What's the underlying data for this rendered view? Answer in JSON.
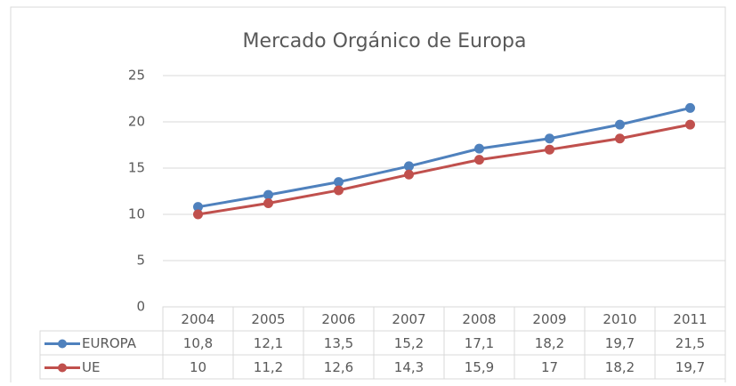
{
  "chart_data": {
    "type": "line",
    "title": "Mercado Orgánico de Europa",
    "categories": [
      "2004",
      "2005",
      "2006",
      "2007",
      "2008",
      "2009",
      "2010",
      "2011"
    ],
    "series": [
      {
        "name": "EUROPA",
        "color": "#4f81bd",
        "values": [
          10.8,
          12.1,
          13.5,
          15.2,
          17.1,
          18.2,
          19.7,
          21.5
        ],
        "value_labels": [
          "10,8",
          "12,1",
          "13,5",
          "15,2",
          "17,1",
          "18,2",
          "19,7",
          "21,5"
        ]
      },
      {
        "name": "UE",
        "color": "#c0504d",
        "values": [
          10,
          11.2,
          12.6,
          14.3,
          15.9,
          17,
          18.2,
          19.7
        ],
        "value_labels": [
          "10",
          "11,2",
          "12,6",
          "14,3",
          "15,9",
          "17",
          "18,2",
          "19,7"
        ]
      }
    ],
    "ylim": [
      0,
      25
    ],
    "yticks": [
      0,
      5,
      10,
      15,
      20,
      25
    ],
    "grid": true,
    "data_table": true
  }
}
